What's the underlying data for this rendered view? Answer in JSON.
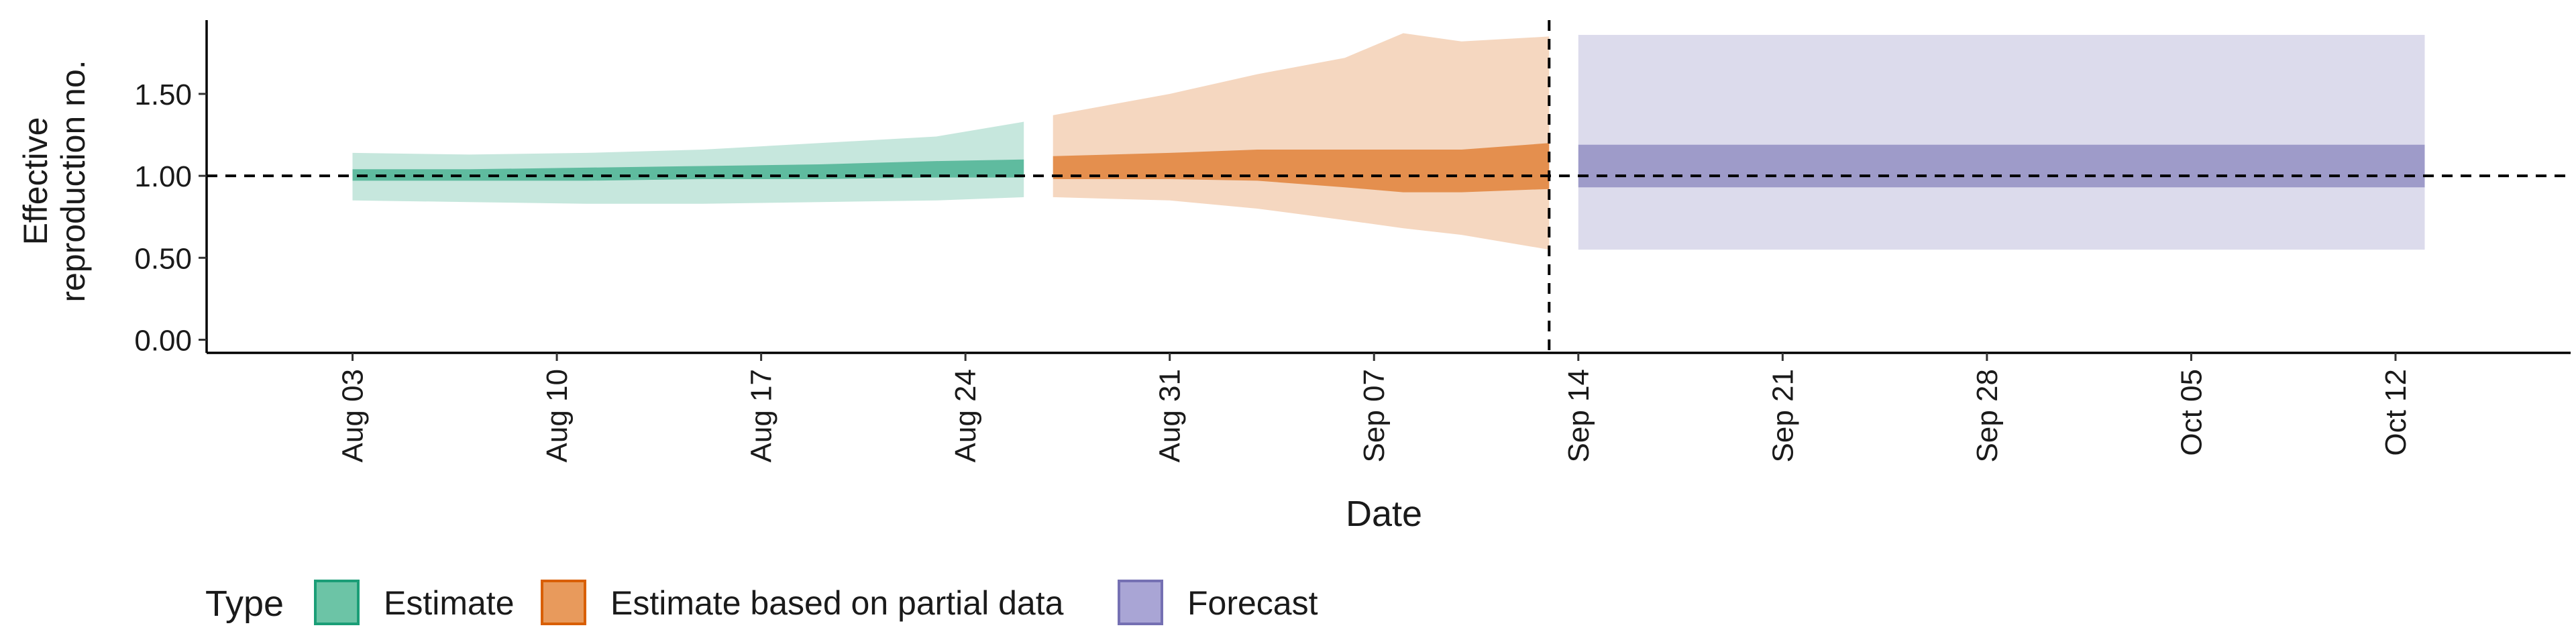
{
  "chart_data": {
    "type": "area",
    "xlabel": "Date",
    "ylabel_lines": [
      "Effective",
      "reproduction no."
    ],
    "ylim": [
      -0.08,
      1.95
    ],
    "y_ticks": [
      {
        "value": 0.0,
        "label": "0.00"
      },
      {
        "value": 0.5,
        "label": "0.50"
      },
      {
        "value": 1.0,
        "label": "1.00"
      },
      {
        "value": 1.5,
        "label": "1.50"
      }
    ],
    "x_ticks": [
      {
        "date": "2020-08-03",
        "label": "Aug 03"
      },
      {
        "date": "2020-08-10",
        "label": "Aug 10"
      },
      {
        "date": "2020-08-17",
        "label": "Aug 17"
      },
      {
        "date": "2020-08-24",
        "label": "Aug 24"
      },
      {
        "date": "2020-08-31",
        "label": "Aug 31"
      },
      {
        "date": "2020-09-07",
        "label": "Sep 07"
      },
      {
        "date": "2020-09-14",
        "label": "Sep 14"
      },
      {
        "date": "2020-09-21",
        "label": "Sep 21"
      },
      {
        "date": "2020-09-28",
        "label": "Sep 28"
      },
      {
        "date": "2020-10-05",
        "label": "Oct 05"
      },
      {
        "date": "2020-10-12",
        "label": "Oct 12"
      }
    ],
    "x_range": [
      "2020-07-29",
      "2020-10-18"
    ],
    "reference_line_y": 1.0,
    "vertical_line_date": "2020-09-13",
    "legend_title": "Type",
    "series": [
      {
        "name": "Estimate",
        "color": "#1b9e77",
        "legend_fill": "#6cc4a6",
        "points": [
          {
            "x": "2020-08-03",
            "lo90": 0.85,
            "hi90": 1.14,
            "lo50": 0.97,
            "hi50": 1.04
          },
          {
            "x": "2020-08-07",
            "lo90": 0.84,
            "hi90": 1.13,
            "lo50": 0.97,
            "hi50": 1.04
          },
          {
            "x": "2020-08-11",
            "lo90": 0.83,
            "hi90": 1.14,
            "lo50": 0.97,
            "hi50": 1.05
          },
          {
            "x": "2020-08-15",
            "lo90": 0.83,
            "hi90": 1.16,
            "lo50": 0.98,
            "hi50": 1.06
          },
          {
            "x": "2020-08-19",
            "lo90": 0.84,
            "hi90": 1.2,
            "lo50": 0.98,
            "hi50": 1.07
          },
          {
            "x": "2020-08-23",
            "lo90": 0.85,
            "hi90": 1.24,
            "lo50": 0.99,
            "hi50": 1.09
          },
          {
            "x": "2020-08-26",
            "lo90": 0.87,
            "hi90": 1.33,
            "lo50": 0.99,
            "hi50": 1.1
          }
        ]
      },
      {
        "name": "Estimate based on partial data",
        "color": "#d95f02",
        "legend_fill": "#e89a5c",
        "points": [
          {
            "x": "2020-08-27",
            "lo90": 0.87,
            "hi90": 1.37,
            "lo50": 0.98,
            "hi50": 1.12
          },
          {
            "x": "2020-08-31",
            "lo90": 0.85,
            "hi90": 1.5,
            "lo50": 0.98,
            "hi50": 1.14
          },
          {
            "x": "2020-09-03",
            "lo90": 0.8,
            "hi90": 1.62,
            "lo50": 0.97,
            "hi50": 1.16
          },
          {
            "x": "2020-09-06",
            "lo90": 0.73,
            "hi90": 1.72,
            "lo50": 0.93,
            "hi50": 1.16
          },
          {
            "x": "2020-09-08",
            "lo90": 0.68,
            "hi90": 1.87,
            "lo50": 0.9,
            "hi50": 1.16
          },
          {
            "x": "2020-09-10",
            "lo90": 0.64,
            "hi90": 1.82,
            "lo50": 0.9,
            "hi50": 1.16
          },
          {
            "x": "2020-09-13",
            "lo90": 0.55,
            "hi90": 1.85,
            "lo50": 0.92,
            "hi50": 1.2
          }
        ]
      },
      {
        "name": "Forecast",
        "color": "#7570b3",
        "legend_fill": "#a9a5d5",
        "points": [
          {
            "x": "2020-09-14",
            "lo90": 0.55,
            "hi90": 1.86,
            "lo50": 0.93,
            "hi50": 1.19
          },
          {
            "x": "2020-10-13",
            "lo90": 0.55,
            "hi90": 1.86,
            "lo50": 0.93,
            "hi50": 1.19
          }
        ]
      }
    ]
  }
}
